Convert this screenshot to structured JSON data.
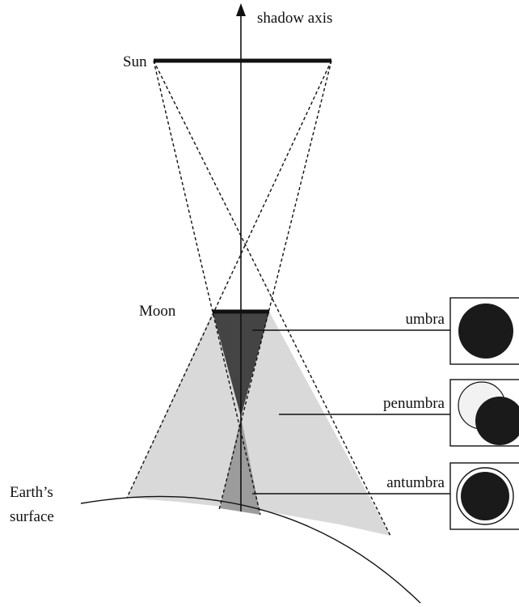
{
  "axis_label": "shadow axis",
  "bodies": {
    "sun": "Sun",
    "moon": "Moon"
  },
  "regions": {
    "umbra": "umbra",
    "penumbra": "penumbra",
    "antumbra": "antumbra"
  },
  "earth_surface": [
    "Earth’s",
    "surface"
  ]
}
